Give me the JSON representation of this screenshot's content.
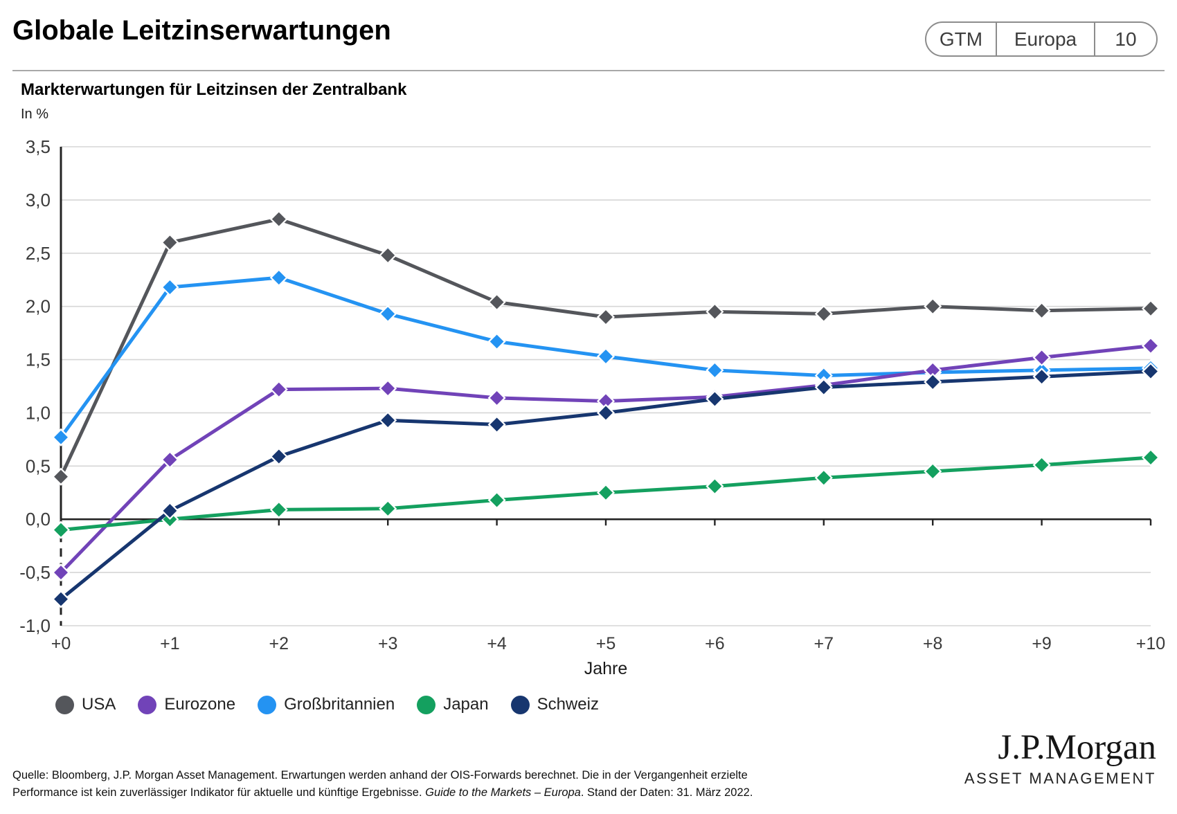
{
  "header": {
    "title": "Globale Leitzinserwartungen",
    "badge": {
      "label": "GTM",
      "region": "Europa",
      "page_number": "10"
    }
  },
  "chart_data": {
    "type": "line",
    "title": "Markterwartungen für Leitzinsen der Zentralbank",
    "ylabel": "In %",
    "xlabel": "Jahre",
    "x": [
      "+0",
      "+1",
      "+2",
      "+3",
      "+4",
      "+5",
      "+6",
      "+7",
      "+8",
      "+9",
      "+10"
    ],
    "ylim": [
      -1.0,
      3.5
    ],
    "ytick_values": [
      3.5,
      3.0,
      2.5,
      2.0,
      1.5,
      1.0,
      0.5,
      0.0,
      -0.5,
      -1.0
    ],
    "ytick_labels": [
      "3,5",
      "3,0",
      "2,5",
      "2,0",
      "1,5",
      "1,0",
      "0,5",
      "0,0",
      "-0,5",
      "-1,0"
    ],
    "grid": true,
    "marker": "diamond",
    "legend_position": "bottom",
    "series": [
      {
        "name": "USA",
        "color": "#54565B",
        "values": [
          0.4,
          2.6,
          2.82,
          2.48,
          2.04,
          1.9,
          1.95,
          1.93,
          2.0,
          1.96,
          1.98
        ]
      },
      {
        "name": "Eurozone",
        "color": "#7143B8",
        "values": [
          -0.5,
          0.56,
          1.22,
          1.23,
          1.14,
          1.11,
          1.15,
          1.26,
          1.4,
          1.52,
          1.63
        ]
      },
      {
        "name": "Großbritannien",
        "color": "#2493F2",
        "values": [
          0.77,
          2.18,
          2.27,
          1.93,
          1.67,
          1.53,
          1.4,
          1.35,
          1.38,
          1.4,
          1.42
        ]
      },
      {
        "name": "Japan",
        "color": "#14A05F",
        "values": [
          -0.1,
          0.0,
          0.09,
          0.1,
          0.18,
          0.25,
          0.31,
          0.39,
          0.45,
          0.51,
          0.58
        ]
      },
      {
        "name": "Schweiz",
        "color": "#17366F",
        "values": [
          -0.75,
          0.08,
          0.59,
          0.93,
          0.89,
          1.0,
          1.13,
          1.24,
          1.29,
          1.34,
          1.39
        ]
      }
    ],
    "plot_colors": {
      "gridline": "#D6D6D6",
      "axis": "#232323",
      "tick_label": "#3A3A3A"
    }
  },
  "footer": {
    "source_regular": "Quelle: Bloomberg, J.P. Morgan Asset Management. Erwartungen werden anhand der OIS-Forwards berechnet. Die in der Vergangenheit erzielte Performance ist kein zuverlässiger Indikator für aktuelle und künftige Ergebnisse. ",
    "source_italic": "Guide to the Markets – Europa",
    "source_end": ". Stand der Daten: 31. März 2022."
  },
  "logo": {
    "brand": "J.P.Morgan",
    "division": "ASSET MANAGEMENT"
  }
}
